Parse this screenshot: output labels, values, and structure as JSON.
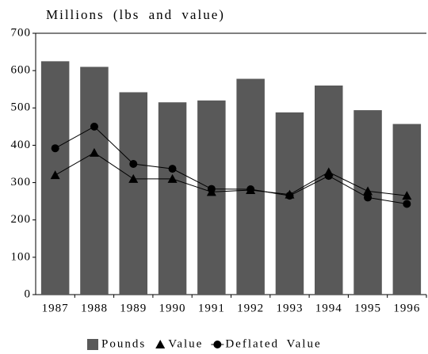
{
  "chart_data": {
    "type": "bar",
    "title": "Millions (lbs and value)",
    "categories": [
      "1987",
      "1988",
      "1989",
      "1990",
      "1991",
      "1992",
      "1993",
      "1994",
      "1995",
      "1996"
    ],
    "series": [
      {
        "name": "Pounds",
        "color": "#595959",
        "style": "bar",
        "values": [
          625,
          610,
          542,
          515,
          520,
          578,
          488,
          560,
          494,
          457
        ]
      },
      {
        "name": "Value",
        "color": "#000000",
        "style": "line",
        "marker": "triangle",
        "values": [
          320,
          380,
          310,
          310,
          275,
          280,
          268,
          328,
          277,
          265
        ]
      },
      {
        "name": "Deflated Value",
        "color": "#000000",
        "style": "line",
        "marker": "circle",
        "values": [
          392,
          450,
          350,
          337,
          283,
          282,
          265,
          318,
          260,
          243
        ]
      }
    ],
    "ylim": [
      0,
      700
    ],
    "yticks": [
      0,
      100,
      200,
      300,
      400,
      500,
      600,
      700
    ],
    "grid": false,
    "legend": "bottom"
  }
}
